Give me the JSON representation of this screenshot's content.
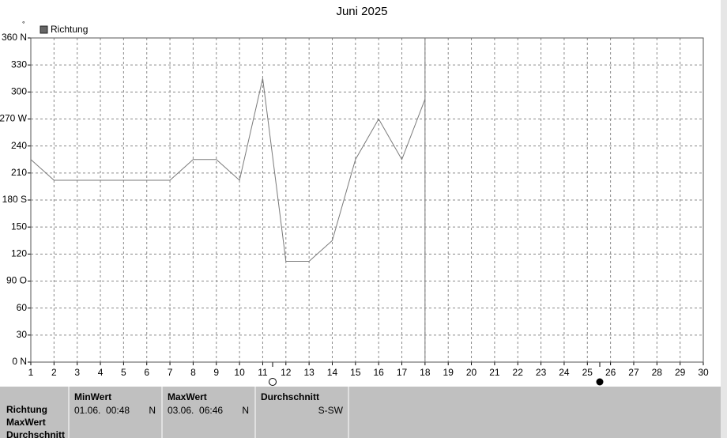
{
  "chart_data": {
    "type": "line",
    "title": "Juni 2025",
    "y_unit": "°",
    "legend_position": "top-left",
    "x": [
      1,
      2,
      3,
      4,
      5,
      6,
      7,
      8,
      9,
      10,
      11,
      12,
      13,
      14,
      15,
      16,
      17,
      18
    ],
    "series": [
      {
        "name": "Richtung",
        "color": "#7a7a7a",
        "values": [
          225,
          202,
          202,
          202,
          202,
          202,
          202,
          225,
          225,
          202,
          315,
          112,
          112,
          135,
          225,
          270,
          225,
          292
        ]
      }
    ],
    "xlim": [
      1,
      30
    ],
    "xticks": [
      1,
      2,
      3,
      4,
      5,
      6,
      7,
      8,
      9,
      10,
      11,
      12,
      13,
      14,
      15,
      16,
      17,
      18,
      19,
      20,
      21,
      22,
      23,
      24,
      25,
      26,
      27,
      28,
      29,
      30
    ],
    "ylim": [
      0,
      360
    ],
    "yticks": [
      {
        "value": 0,
        "label": "0 N"
      },
      30,
      60,
      {
        "value": 90,
        "label": "90 O"
      },
      120,
      150,
      {
        "value": 180,
        "label": "180 S"
      },
      210,
      240,
      {
        "value": 270,
        "label": "270 W"
      },
      300,
      330,
      {
        "value": 360,
        "label": "360 N"
      }
    ],
    "grid": true
  },
  "table": {
    "columns": [
      "MinWert",
      "MaxWert",
      "Durchschnitt"
    ],
    "rows": [
      [
        "Richtung",
        "01.06.  00:48",
        "N",
        "03.06.  06:46",
        "N",
        "S-SW"
      ],
      [
        "MaxWert"
      ],
      [
        "Durchschnitt"
      ]
    ]
  }
}
